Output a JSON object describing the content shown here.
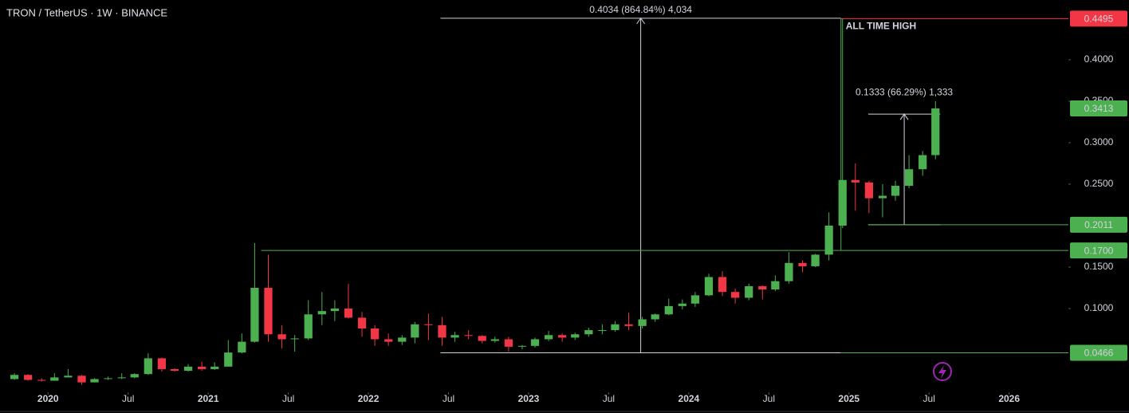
{
  "chart_data": {
    "type": "candlestick",
    "title": "TRON / TetherUS · 1W · BINANCE",
    "up_color": "#4caf50",
    "down_color": "#f23645",
    "x": [
      2019.79,
      2019.875,
      2019.96,
      2020.04,
      2020.125,
      2020.21,
      2020.29,
      2020.375,
      2020.46,
      2020.54,
      2020.625,
      2020.71,
      2020.79,
      2020.875,
      2020.96,
      2021.04,
      2021.125,
      2021.21,
      2021.29,
      2021.375,
      2021.46,
      2021.54,
      2021.625,
      2021.71,
      2021.79,
      2021.875,
      2021.96,
      2022.04,
      2022.125,
      2022.21,
      2022.29,
      2022.375,
      2022.46,
      2022.54,
      2022.625,
      2022.71,
      2022.79,
      2022.875,
      2022.96,
      2023.04,
      2023.125,
      2023.21,
      2023.29,
      2023.375,
      2023.46,
      2023.54,
      2023.625,
      2023.71,
      2023.79,
      2023.875,
      2023.96,
      2024.04,
      2024.125,
      2024.21,
      2024.29,
      2024.375,
      2024.46,
      2024.54,
      2024.625,
      2024.71,
      2024.79,
      2024.875,
      2024.96,
      2025.04,
      2025.125,
      2025.21,
      2025.29,
      2025.375,
      2025.46,
      2025.54
    ],
    "open": [
      0.015,
      0.02,
      0.014,
      0.013,
      0.017,
      0.019,
      0.011,
      0.015,
      0.016,
      0.017,
      0.021,
      0.04,
      0.027,
      0.025,
      0.03,
      0.027,
      0.03,
      0.047,
      0.06,
      0.125,
      0.069,
      0.063,
      0.064,
      0.093,
      0.097,
      0.1,
      0.089,
      0.076,
      0.063,
      0.06,
      0.065,
      0.081,
      0.08,
      0.065,
      0.068,
      0.067,
      0.061,
      0.063,
      0.054,
      0.055,
      0.063,
      0.068,
      0.065,
      0.069,
      0.074,
      0.074,
      0.081,
      0.079,
      0.087,
      0.093,
      0.103,
      0.106,
      0.116,
      0.138,
      0.12,
      0.113,
      0.127,
      0.123,
      0.133,
      0.155,
      0.151,
      0.165,
      0.2,
      0.255,
      0.252,
      0.233,
      0.236,
      0.248,
      0.268,
      0.285
    ],
    "high": [
      0.022,
      0.021,
      0.016,
      0.022,
      0.027,
      0.02,
      0.016,
      0.018,
      0.022,
      0.022,
      0.046,
      0.041,
      0.028,
      0.033,
      0.036,
      0.035,
      0.062,
      0.07,
      0.179,
      0.165,
      0.08,
      0.068,
      0.11,
      0.12,
      0.11,
      0.13,
      0.096,
      0.08,
      0.07,
      0.068,
      0.084,
      0.094,
      0.09,
      0.072,
      0.074,
      0.068,
      0.066,
      0.066,
      0.056,
      0.065,
      0.073,
      0.07,
      0.071,
      0.077,
      0.081,
      0.085,
      0.095,
      0.09,
      0.094,
      0.112,
      0.111,
      0.12,
      0.142,
      0.145,
      0.124,
      0.13,
      0.128,
      0.14,
      0.168,
      0.158,
      0.166,
      0.216,
      0.4495,
      0.275,
      0.254,
      0.25,
      0.254,
      0.285,
      0.29,
      0.35
    ],
    "low": [
      0.014,
      0.013,
      0.012,
      0.013,
      0.017,
      0.008,
      0.011,
      0.014,
      0.015,
      0.016,
      0.02,
      0.024,
      0.024,
      0.024,
      0.025,
      0.026,
      0.03,
      0.046,
      0.059,
      0.06,
      0.052,
      0.048,
      0.062,
      0.08,
      0.085,
      0.088,
      0.066,
      0.055,
      0.055,
      0.056,
      0.058,
      0.062,
      0.055,
      0.06,
      0.063,
      0.058,
      0.059,
      0.048,
      0.051,
      0.053,
      0.061,
      0.06,
      0.062,
      0.066,
      0.069,
      0.072,
      0.074,
      0.076,
      0.084,
      0.092,
      0.099,
      0.102,
      0.115,
      0.115,
      0.106,
      0.11,
      0.111,
      0.121,
      0.13,
      0.144,
      0.15,
      0.158,
      0.197,
      0.218,
      0.215,
      0.21,
      0.23,
      0.245,
      0.26,
      0.28
    ],
    "close": [
      0.02,
      0.014,
      0.013,
      0.017,
      0.019,
      0.011,
      0.015,
      0.016,
      0.017,
      0.021,
      0.04,
      0.027,
      0.025,
      0.03,
      0.027,
      0.03,
      0.047,
      0.06,
      0.125,
      0.069,
      0.063,
      0.064,
      0.093,
      0.097,
      0.1,
      0.089,
      0.076,
      0.063,
      0.06,
      0.065,
      0.081,
      0.08,
      0.065,
      0.068,
      0.067,
      0.061,
      0.063,
      0.054,
      0.055,
      0.063,
      0.068,
      0.065,
      0.069,
      0.074,
      0.074,
      0.081,
      0.079,
      0.087,
      0.093,
      0.103,
      0.106,
      0.116,
      0.138,
      0.12,
      0.113,
      0.127,
      0.123,
      0.133,
      0.155,
      0.151,
      0.165,
      0.2,
      0.255,
      0.252,
      0.233,
      0.236,
      0.248,
      0.268,
      0.285,
      0.3413
    ],
    "xlim": [
      2019.7,
      2026.37
    ],
    "xticks": [
      2020,
      {
        "value": 2020.5,
        "label": "Jul"
      },
      2021,
      {
        "value": 2021.5,
        "label": "Jul"
      },
      2022,
      {
        "value": 2022.5,
        "label": "Jul"
      },
      2023,
      {
        "value": 2023.5,
        "label": "Jul"
      },
      2024,
      {
        "value": 2024.5,
        "label": "Jul"
      },
      2025,
      {
        "value": 2025.5,
        "label": "Jul"
      },
      2026
    ],
    "ylim": [
      0.001,
      0.472
    ],
    "yticks": [
      {
        "value": 0.1,
        "label": "0.1000"
      },
      {
        "value": 0.15,
        "label": "0.1500"
      },
      {
        "value": 0.25,
        "label": "0.2500"
      },
      {
        "value": 0.3,
        "label": "0.3000"
      },
      {
        "value": 0.35,
        "label": "0.3500"
      },
      {
        "value": 0.4,
        "label": "0.4000"
      }
    ],
    "price_lines": [
      {
        "value": 0.4495,
        "label": "0.4495",
        "color": "#f23645",
        "start": 2024.95
      },
      {
        "value": 0.3413,
        "label": "0.3413",
        "color": "#4caf50"
      },
      {
        "value": 0.2011,
        "label": "0.2011",
        "color": "#4caf50",
        "start": 2025.12
      },
      {
        "value": 0.17,
        "label": "0.1700",
        "color": "#4caf50",
        "start": 2021.33
      },
      {
        "value": 0.0466,
        "label": "0.0466",
        "color": "#4caf50",
        "start": 2024.95
      }
    ],
    "measures": [
      {
        "label": "0.4034 (864.84%) 4,034",
        "from": 0.0466,
        "to": 0.45,
        "start": 2022.45,
        "end": 2024.95
      },
      {
        "label": "0.1333 (66.29%) 1,333",
        "from": 0.2011,
        "to": 0.3344,
        "start": 2025.12,
        "end": 2025.57
      }
    ],
    "annotation": "ALL TIME HIGH"
  }
}
